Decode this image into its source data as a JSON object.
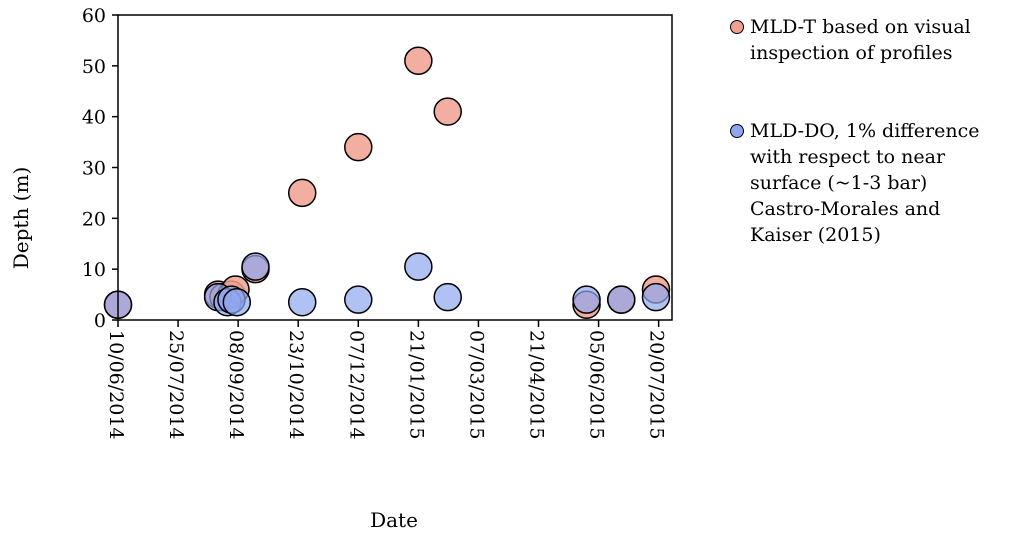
{
  "chart_data": {
    "type": "scatter",
    "title": "",
    "xlabel": "Date",
    "ylabel": "Depth (m)",
    "xlim": [
      "2014-06-10",
      "2015-07-30"
    ],
    "ylim": [
      0,
      60
    ],
    "yticks": [
      0,
      10,
      20,
      30,
      40,
      50,
      60
    ],
    "xticks": [
      "10/06/2014",
      "25/07/2014",
      "08/09/2014",
      "23/10/2014",
      "07/12/2014",
      "21/01/2015",
      "07/03/2015",
      "21/04/2015",
      "05/06/2015",
      "20/07/2015"
    ],
    "grid": false,
    "legend_position": "right",
    "series": [
      {
        "name": "MLD-T based on visual\ninspection of profiles",
        "color": "#f0a090",
        "points": [
          {
            "x": "2014-06-10",
            "y": 3
          },
          {
            "x": "2014-08-24",
            "y": 5
          },
          {
            "x": "2014-08-28",
            "y": 4.5
          },
          {
            "x": "2014-09-03",
            "y": 5
          },
          {
            "x": "2014-09-06",
            "y": 6
          },
          {
            "x": "2014-09-21",
            "y": 10
          },
          {
            "x": "2014-10-26",
            "y": 25
          },
          {
            "x": "2014-12-07",
            "y": 34
          },
          {
            "x": "2015-01-21",
            "y": 51
          },
          {
            "x": "2015-02-12",
            "y": 41
          },
          {
            "x": "2015-05-27",
            "y": 3
          },
          {
            "x": "2015-06-22",
            "y": 4
          },
          {
            "x": "2015-07-18",
            "y": 6
          }
        ]
      },
      {
        "name": "MLD-DO, 1% difference\nwith respect to near\nsurface (~1-3 bar)\nCastro-Morales and\nKaiser (2015)",
        "color": "#8fa6ef",
        "points": [
          {
            "x": "2014-06-10",
            "y": 3
          },
          {
            "x": "2014-08-24",
            "y": 4.5
          },
          {
            "x": "2014-08-31",
            "y": 3.5
          },
          {
            "x": "2014-09-03",
            "y": 4
          },
          {
            "x": "2014-09-07",
            "y": 3.5
          },
          {
            "x": "2014-09-21",
            "y": 10.5
          },
          {
            "x": "2014-10-26",
            "y": 3.5
          },
          {
            "x": "2014-12-07",
            "y": 4
          },
          {
            "x": "2015-01-21",
            "y": 10.5
          },
          {
            "x": "2015-02-12",
            "y": 4.5
          },
          {
            "x": "2015-05-27",
            "y": 4
          },
          {
            "x": "2015-06-22",
            "y": 4
          },
          {
            "x": "2015-07-18",
            "y": 4.5
          }
        ]
      }
    ]
  }
}
